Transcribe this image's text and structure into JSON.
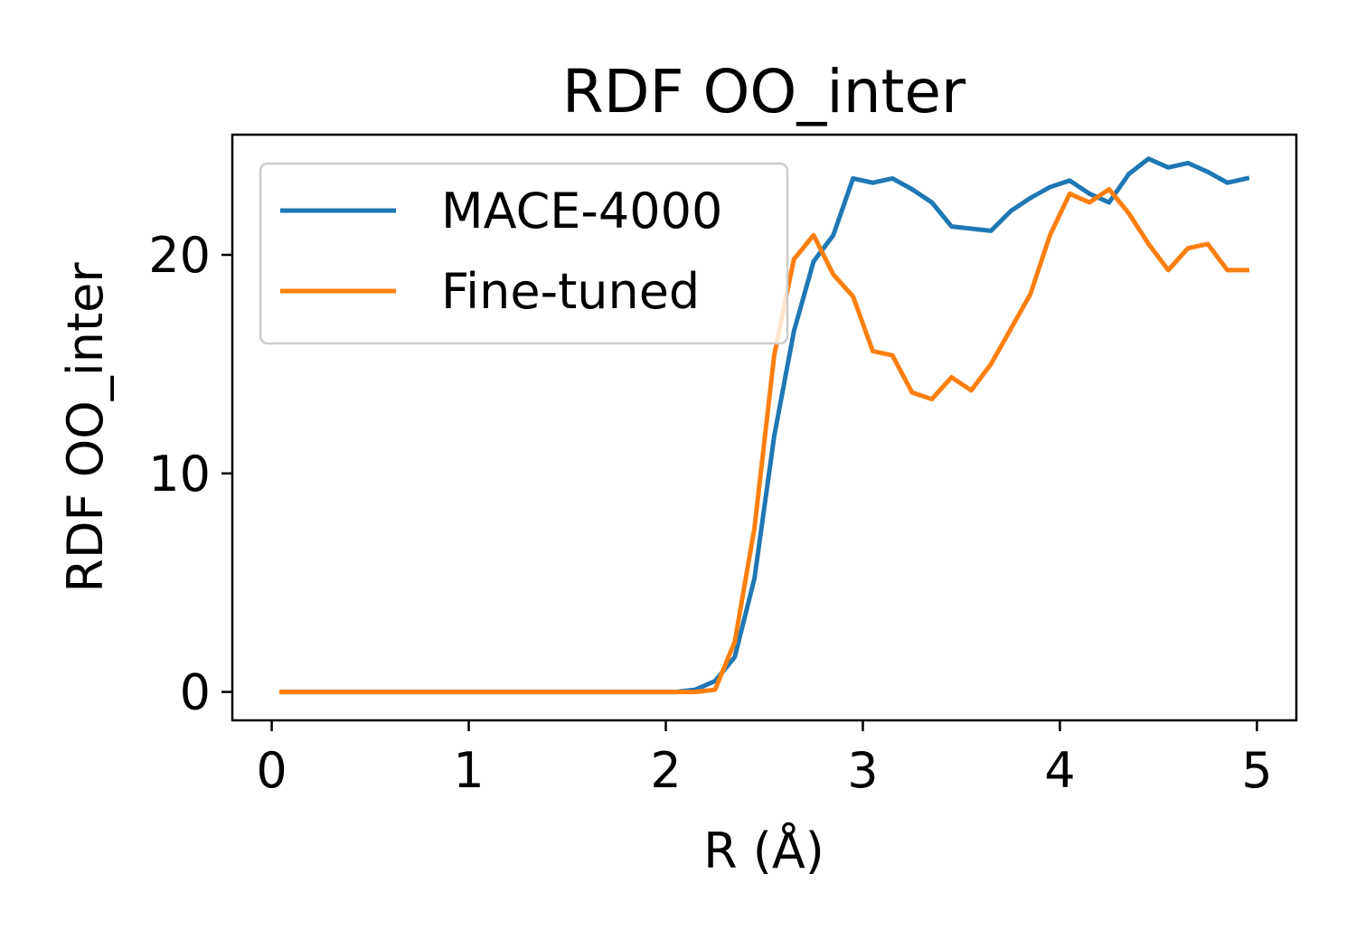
{
  "chart_data": {
    "type": "line",
    "title": "RDF OO_inter",
    "xlabel": "R (Å)",
    "ylabel": "RDF OO_inter",
    "xlim": [
      -0.2,
      5.2
    ],
    "ylim": [
      -1.3,
      25.5
    ],
    "xticks": [
      0,
      1,
      2,
      3,
      4,
      5
    ],
    "yticks": [
      0,
      10,
      20
    ],
    "xtick_labels": [
      "0",
      "1",
      "2",
      "3",
      "4",
      "5"
    ],
    "ytick_labels": [
      "0",
      "10",
      "20"
    ],
    "grid": false,
    "legend_position": "upper-left",
    "x": [
      0.05,
      0.15,
      0.25,
      0.35,
      0.45,
      0.55,
      0.65,
      0.75,
      0.85,
      0.95,
      1.05,
      1.15,
      1.25,
      1.35,
      1.45,
      1.55,
      1.65,
      1.75,
      1.85,
      1.95,
      2.05,
      2.15,
      2.25,
      2.35,
      2.45,
      2.55,
      2.65,
      2.75,
      2.85,
      2.95,
      3.05,
      3.15,
      3.25,
      3.35,
      3.45,
      3.55,
      3.65,
      3.75,
      3.85,
      3.95,
      4.05,
      4.15,
      4.25,
      4.35,
      4.45,
      4.55,
      4.65,
      4.75,
      4.85,
      4.95
    ],
    "series": [
      {
        "name": "MACE-4000",
        "color": "#1f77b4",
        "values": [
          0,
          0,
          0,
          0,
          0,
          0,
          0,
          0,
          0,
          0,
          0,
          0,
          0,
          0,
          0,
          0,
          0,
          0,
          0,
          0,
          0,
          0.1,
          0.5,
          1.6,
          5.2,
          11.7,
          16.5,
          19.7,
          20.9,
          23.5,
          23.3,
          23.5,
          23.0,
          22.4,
          21.3,
          21.2,
          21.1,
          22.0,
          22.6,
          23.1,
          23.4,
          22.8,
          22.4,
          23.7,
          24.4,
          24.0,
          24.2,
          23.8,
          23.3,
          23.5
        ]
      },
      {
        "name": "Fine-tuned",
        "color": "#ff7f0e",
        "values": [
          0,
          0,
          0,
          0,
          0,
          0,
          0,
          0,
          0,
          0,
          0,
          0,
          0,
          0,
          0,
          0,
          0,
          0,
          0,
          0,
          0,
          0,
          0.1,
          2.3,
          7.5,
          15.4,
          19.8,
          20.9,
          19.1,
          18.1,
          15.6,
          15.4,
          13.7,
          13.4,
          14.4,
          13.8,
          15.0,
          16.6,
          18.2,
          20.9,
          22.8,
          22.4,
          23.0,
          21.9,
          20.5,
          19.3,
          20.3,
          20.5,
          19.3,
          19.3
        ]
      }
    ]
  }
}
